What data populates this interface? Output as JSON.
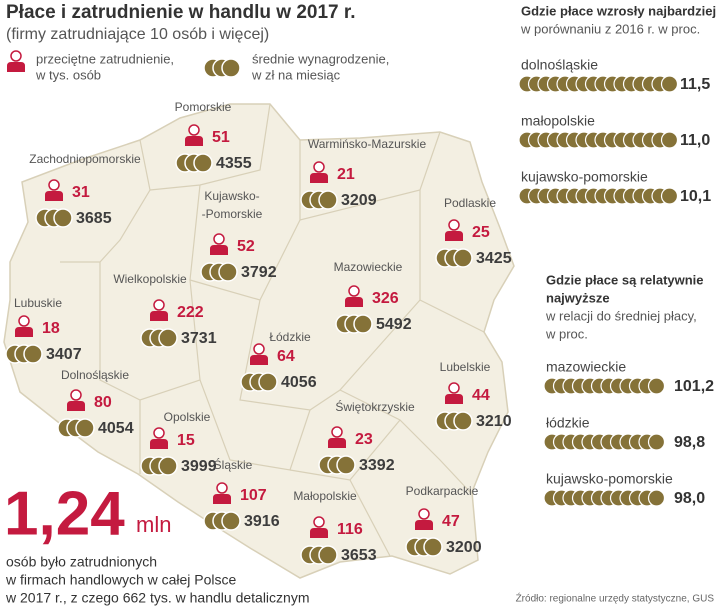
{
  "header": {
    "title": "Płace i zatrudnienie w handlu w 2017 r.",
    "subtitle": "(firmy zatrudniające 10 osób i więcej)"
  },
  "legend": {
    "employment": [
      "przeciętne zatrudnienie,",
      "w tys. osób"
    ],
    "wage": [
      "średnie wynagrodzenie,",
      "w zł na miesiąc"
    ]
  },
  "regions": [
    {
      "name": [
        "Pomorskie"
      ],
      "employment": "51",
      "wage": "4355"
    },
    {
      "name": [
        "Zachodniopomorskie"
      ],
      "employment": "31",
      "wage": "3685"
    },
    {
      "name": [
        "Warmińsko-Mazurskie"
      ],
      "employment": "21",
      "wage": "3209"
    },
    {
      "name": [
        "Kujawsko-",
        "-Pomorskie"
      ],
      "employment": "52",
      "wage": "3792"
    },
    {
      "name": [
        "Podlaskie"
      ],
      "employment": "25",
      "wage": "3425"
    },
    {
      "name": [
        "Mazowieckie"
      ],
      "employment": "326",
      "wage": "5492"
    },
    {
      "name": [
        "Wielkopolskie"
      ],
      "employment": "222",
      "wage": "3731"
    },
    {
      "name": [
        "Lubuskie"
      ],
      "employment": "18",
      "wage": "3407"
    },
    {
      "name": [
        "Łódzkie"
      ],
      "employment": "64",
      "wage": "4056"
    },
    {
      "name": [
        "Lubelskie"
      ],
      "employment": "44",
      "wage": "3210"
    },
    {
      "name": [
        "Dolnośląskie"
      ],
      "employment": "80",
      "wage": "4054"
    },
    {
      "name": [
        "Opolskie"
      ],
      "employment": "15",
      "wage": "3999"
    },
    {
      "name": [
        "Świętokrzyskie"
      ],
      "employment": "23",
      "wage": "3392"
    },
    {
      "name": [
        "Śląskie"
      ],
      "employment": "107",
      "wage": "3916"
    },
    {
      "name": [
        "Małopolskie"
      ],
      "employment": "116",
      "wage": "3653"
    },
    {
      "name": [
        "Podkarpackie"
      ],
      "employment": "47",
      "wage": "3200"
    }
  ],
  "growth_panel": {
    "title": [
      "Gdzie płace wzrosły najbardziej"
    ],
    "subtitle": [
      "w porównaniu z 2016 r. w proc."
    ],
    "items": [
      {
        "label": "dolnośląskie",
        "value": "11,5"
      },
      {
        "label": "małopolskie",
        "value": "11,0"
      },
      {
        "label": "kujawsko-pomorskie",
        "value": "10,1"
      }
    ]
  },
  "relative_panel": {
    "title": [
      "Gdzie płace są relatywnie",
      "najwyższe"
    ],
    "subtitle": [
      "w relacji do średniej płacy,",
      "w proc."
    ],
    "items": [
      {
        "label": "mazowieckie",
        "value": "101,2"
      },
      {
        "label": "łódzkie",
        "value": "98,8"
      },
      {
        "label": "kujawsko-pomorskie",
        "value": "98,0"
      }
    ]
  },
  "total": {
    "value": "1,24",
    "unit": "mln",
    "caption": [
      "osób było zatrudnionych",
      "w firmach handlowych w całej Polsce",
      "w 2017 r., z czego 662 tys. w handlu detalicznym"
    ]
  },
  "source": "Źródło: regionalne urzędy statystyczne, GUS"
}
